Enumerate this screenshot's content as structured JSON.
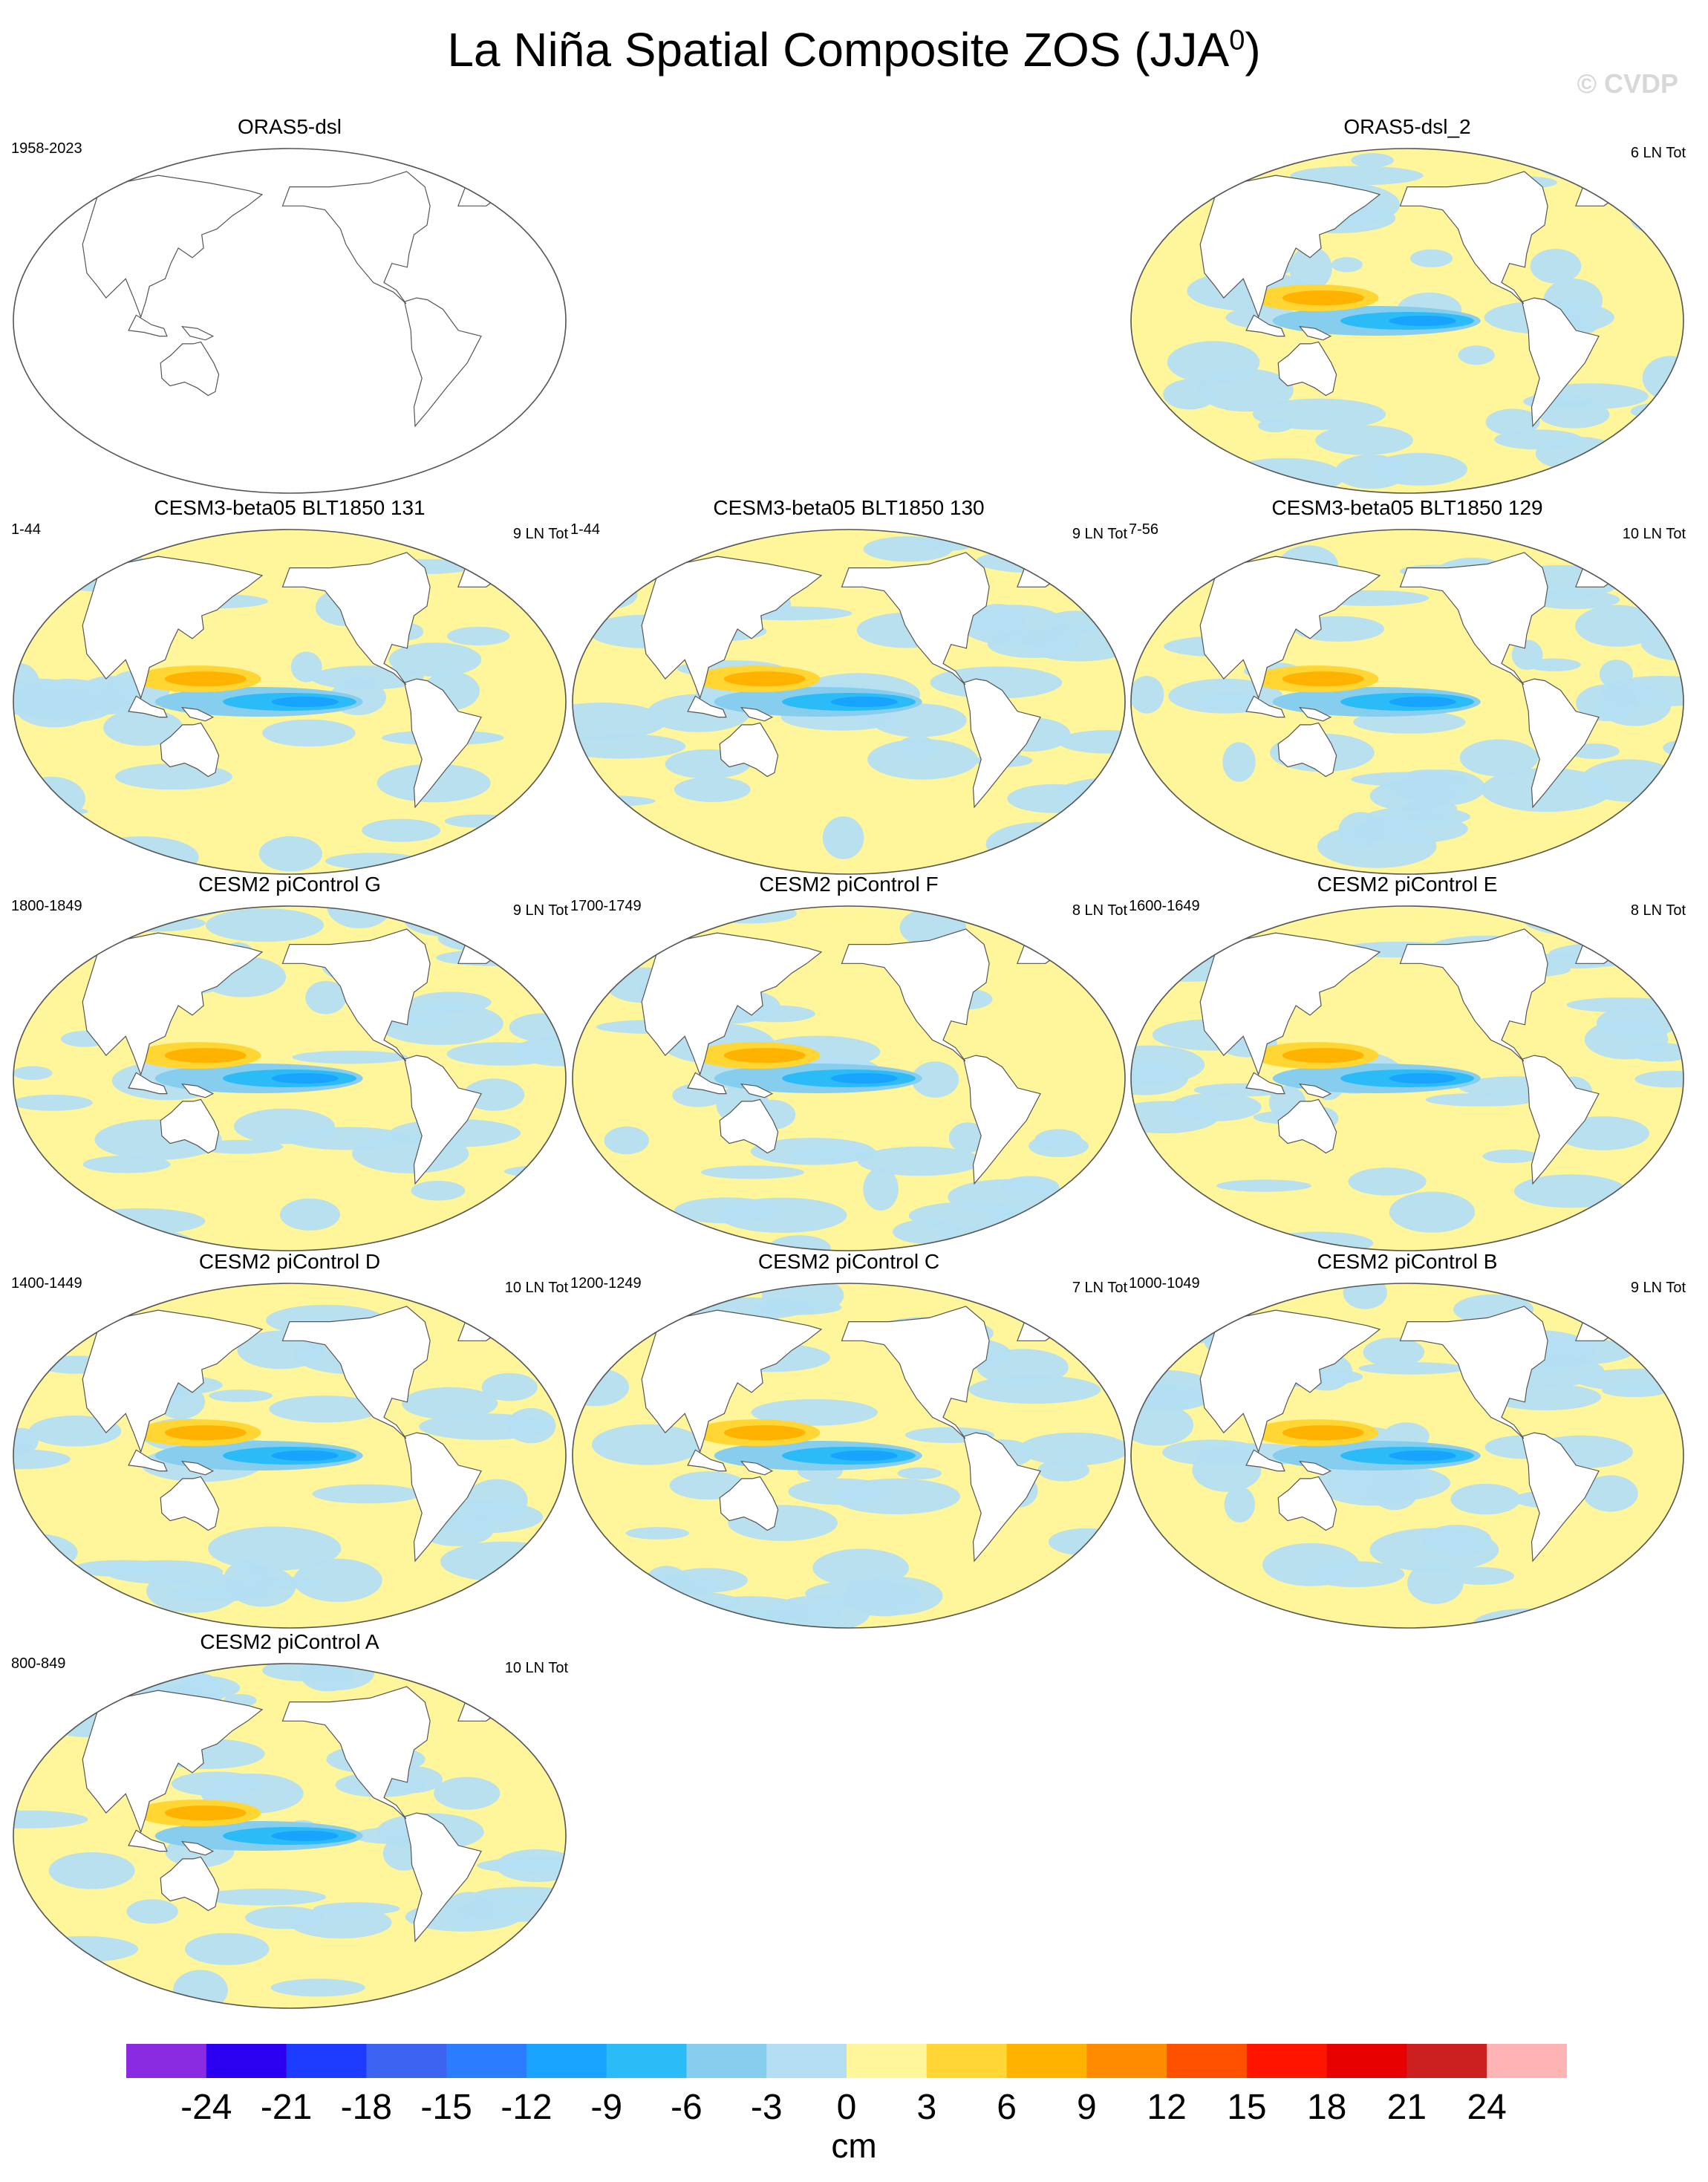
{
  "title": {
    "text": "La Niña Spatial Composite ZOS (JJA",
    "superscript": "0",
    "close": ")"
  },
  "watermark": "© CVDP",
  "panels": [
    {
      "title": "ORAS5-dsl",
      "years": "1958-2023",
      "count": "",
      "has_data": false
    },
    {
      "title": "ORAS5-dsl_2",
      "years": "",
      "count": "6 LN Tot",
      "has_data": true
    },
    {
      "title": "CESM3-beta05 BLT1850 131",
      "years": "1-44",
      "count": "9 LN Tot",
      "has_data": true
    },
    {
      "title": "CESM3-beta05 BLT1850 130",
      "years": "1-44",
      "count": "9 LN Tot",
      "has_data": true
    },
    {
      "title": "CESM3-beta05 BLT1850 129",
      "years": "7-56",
      "count": "10 LN Tot",
      "has_data": true
    },
    {
      "title": "CESM2 piControl G",
      "years": "1800-1849",
      "count": "9 LN Tot",
      "has_data": true
    },
    {
      "title": "CESM2 piControl F",
      "years": "1700-1749",
      "count": "8 LN Tot",
      "has_data": true
    },
    {
      "title": "CESM2 piControl E",
      "years": "1600-1649",
      "count": "8 LN Tot",
      "has_data": true
    },
    {
      "title": "CESM2 piControl D",
      "years": "1400-1449",
      "count": "10 LN Tot",
      "has_data": true
    },
    {
      "title": "CESM2 piControl C",
      "years": "1200-1249",
      "count": "7 LN Tot",
      "has_data": true
    },
    {
      "title": "CESM2 piControl B",
      "years": "1000-1049",
      "count": "9 LN Tot",
      "has_data": true
    },
    {
      "title": "CESM2 piControl A",
      "years": "800-849",
      "count": "10 LN Tot",
      "has_data": true
    }
  ],
  "colorbar": {
    "unit": "cm",
    "labels": [
      "-24",
      "-21",
      "-18",
      "-15",
      "-12",
      "-9",
      "-6",
      "-3",
      "0",
      "3",
      "6",
      "9",
      "12",
      "15",
      "18",
      "21",
      "24"
    ],
    "colors": [
      "#8a2be2",
      "#2b00f0",
      "#1e3cff",
      "#3c64f0",
      "#2b7cff",
      "#17a3ff",
      "#2bbcf8",
      "#87cded",
      "#b4def2",
      "#fff59a",
      "#ffd633",
      "#ffb300",
      "#ff8c00",
      "#ff5000",
      "#ff1400",
      "#e60000",
      "#cc2020",
      "#ffb4b4"
    ]
  }
}
